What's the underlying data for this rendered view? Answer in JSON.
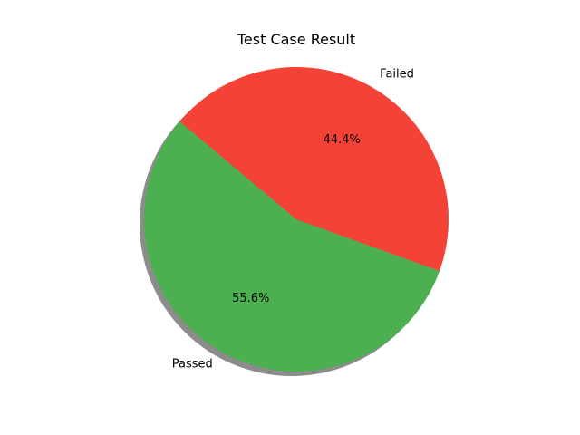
{
  "chart_data": {
    "type": "pie",
    "title": "Test Case Result",
    "categories": [
      "Passed",
      "Failed"
    ],
    "values": [
      55.6,
      44.4
    ],
    "percent_labels": [
      "55.6%",
      "44.4%"
    ],
    "colors": [
      "#4caf50",
      "#f44336"
    ],
    "start_angle_deg": 140,
    "direction": "counterclockwise",
    "shadow": true,
    "legend": "none"
  }
}
